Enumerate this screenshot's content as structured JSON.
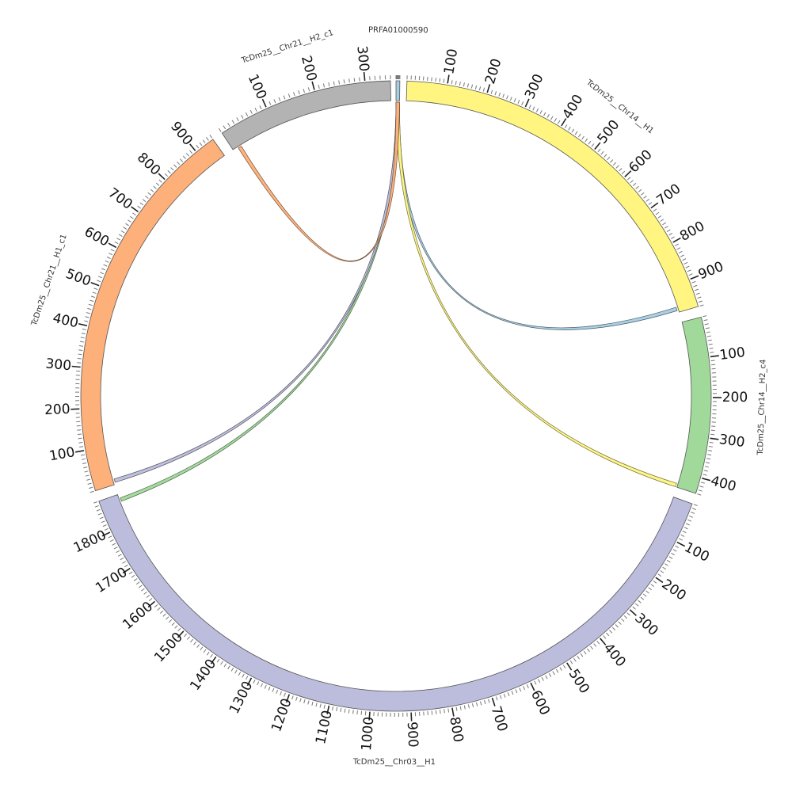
{
  "chart_data": {
    "type": "chord",
    "segments": [
      {
        "id": "PRFA01000590",
        "label": "PRFA01000590",
        "length": 10,
        "color": "#a6cee3",
        "tick_labels": []
      },
      {
        "id": "chr14h1",
        "label": "TcDm25__Chr14__H1",
        "length": 970,
        "color": "#fff580",
        "tick_labels": [
          "100",
          "200",
          "300",
          "400",
          "500",
          "600",
          "700",
          "800",
          "900"
        ]
      },
      {
        "id": "chr14h2",
        "label": "TcDm25__Chr14__H2_c4",
        "length": 440,
        "color": "#a1d99b",
        "tick_labels": [
          "100",
          "200",
          "300",
          "400"
        ]
      },
      {
        "id": "chr03",
        "label": "TcDm25__Chr03__H1",
        "length": 1880,
        "color": "#bcbddc",
        "tick_labels": [
          "100",
          "200",
          "300",
          "400",
          "500",
          "600",
          "700",
          "800",
          "900",
          "1000",
          "1100",
          "1200",
          "1300",
          "1400",
          "1500",
          "1600",
          "1700",
          "1800"
        ]
      },
      {
        "id": "chr21h1",
        "label": "TcDm25__Chr21__H1_c1",
        "length": 950,
        "color": "#fdb07a",
        "tick_labels": [
          "100",
          "200",
          "300",
          "400",
          "500",
          "600",
          "700",
          "800",
          "900"
        ]
      },
      {
        "id": "chr21h2",
        "label": "TcDm25__Chr21__H2_c1",
        "length": 350,
        "color": "#b3b3b3",
        "tick_labels": [
          "100",
          "200",
          "300"
        ]
      }
    ],
    "links": [
      {
        "from": "PRFA01000590",
        "to": "TcDm25__Chr14__H1",
        "to_pos": 960,
        "color": "#a6cee3"
      },
      {
        "from": "PRFA01000590",
        "to": "TcDm25__Chr14__H2_c4",
        "to_pos": 435,
        "color": "#fff580"
      },
      {
        "from": "PRFA01000590",
        "to": "TcDm25__Chr03__H1",
        "to_pos": 1865,
        "color": "#a1d99b"
      },
      {
        "from": "PRFA01000590",
        "to": "TcDm25__Chr21__H1_c1",
        "to_pos": 10,
        "color": "#bcbddc"
      },
      {
        "from": "PRFA01000590",
        "to": "TcDm25__Chr21__H2_c1",
        "to_pos": 15,
        "color": "#fdb07a"
      }
    ]
  }
}
